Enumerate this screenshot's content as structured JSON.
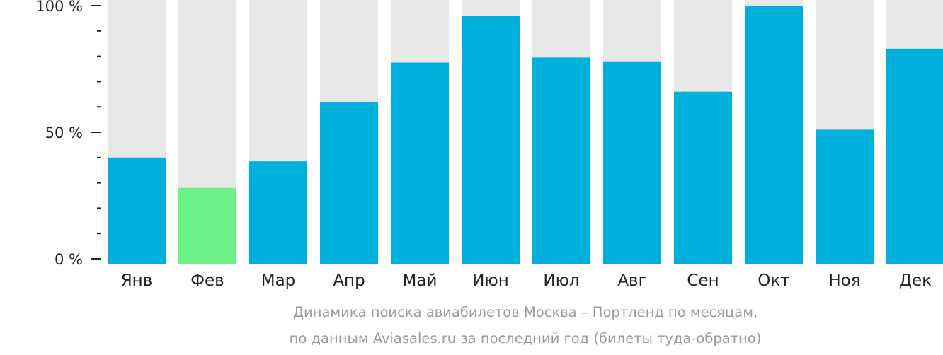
{
  "caption": {
    "line1": "Динамика поиска авиабилетов Москва – Портленд по месяцам,",
    "line2": "по данным Aviasales.ru за последний год (билеты туда-обратно)"
  },
  "colors": {
    "bar": "#00b0dc",
    "bar_min": "#6cf288",
    "track": "#e8e8e8",
    "axis": "#222222"
  },
  "chart_data": {
    "type": "bar",
    "categories": [
      "Янв",
      "Фев",
      "Мар",
      "Апр",
      "Май",
      "Июн",
      "Июл",
      "Авг",
      "Сен",
      "Окт",
      "Ноя",
      "Дек"
    ],
    "values": [
      40,
      28,
      38.5,
      62,
      77.5,
      96,
      79.5,
      78,
      66,
      100,
      51,
      83
    ],
    "highlight_index": 1,
    "ylim": [
      0,
      100
    ],
    "yticks": [
      0,
      50,
      100
    ],
    "ytick_labels": [
      "0 %",
      "50 %",
      "100 %"
    ],
    "minor_ticks_per_major": 5,
    "title": "",
    "xlabel": "",
    "ylabel": "",
    "grid": false,
    "legend": "none"
  }
}
